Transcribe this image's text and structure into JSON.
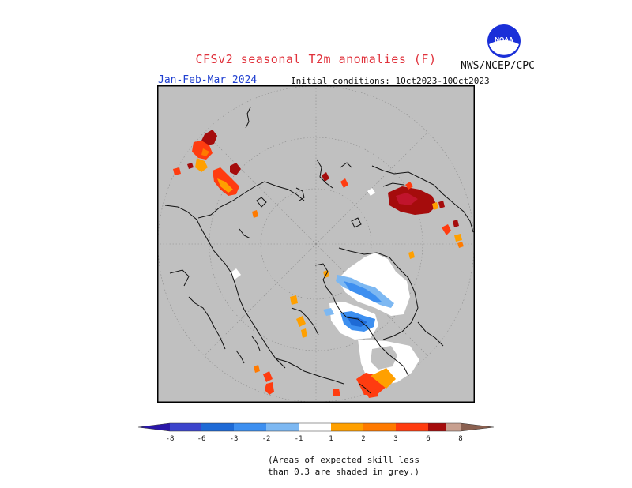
{
  "header": {
    "title": "CFSv2 seasonal T2m anomalies (F)",
    "period": "Jan-Feb-Mar 2024",
    "initial_conditions": "Initial conditions: 1Oct2023-10Oct2023",
    "agency": "NWS/NCEP/CPC",
    "logo_text": "NOAA"
  },
  "colors": {
    "skill_grey": "#c0c0c0",
    "coast": "#111111",
    "grid": "#8c8c8c",
    "neutral": "#ffffff",
    "scale": {
      "-8": "#2a16a8",
      "-6": "#3c44cc",
      "-3": "#1e6ad6",
      "-2": "#3d8ff0",
      "-1": "#7db8f2",
      "1": "#ffa000",
      "2": "#ff7a00",
      "3": "#ff3c10",
      "6": "#a50c0c",
      "8": "#c8a090",
      "9": "#8a6050"
    }
  },
  "colorbar": {
    "tick_labels": [
      "-8",
      "-6",
      "-3",
      "-2",
      "-1",
      "1",
      "2",
      "3",
      "6",
      "8"
    ]
  },
  "footnote": {
    "line1": "(Areas of expected skill less",
    "line2": "than 0.3 are shaded in grey.)"
  }
}
